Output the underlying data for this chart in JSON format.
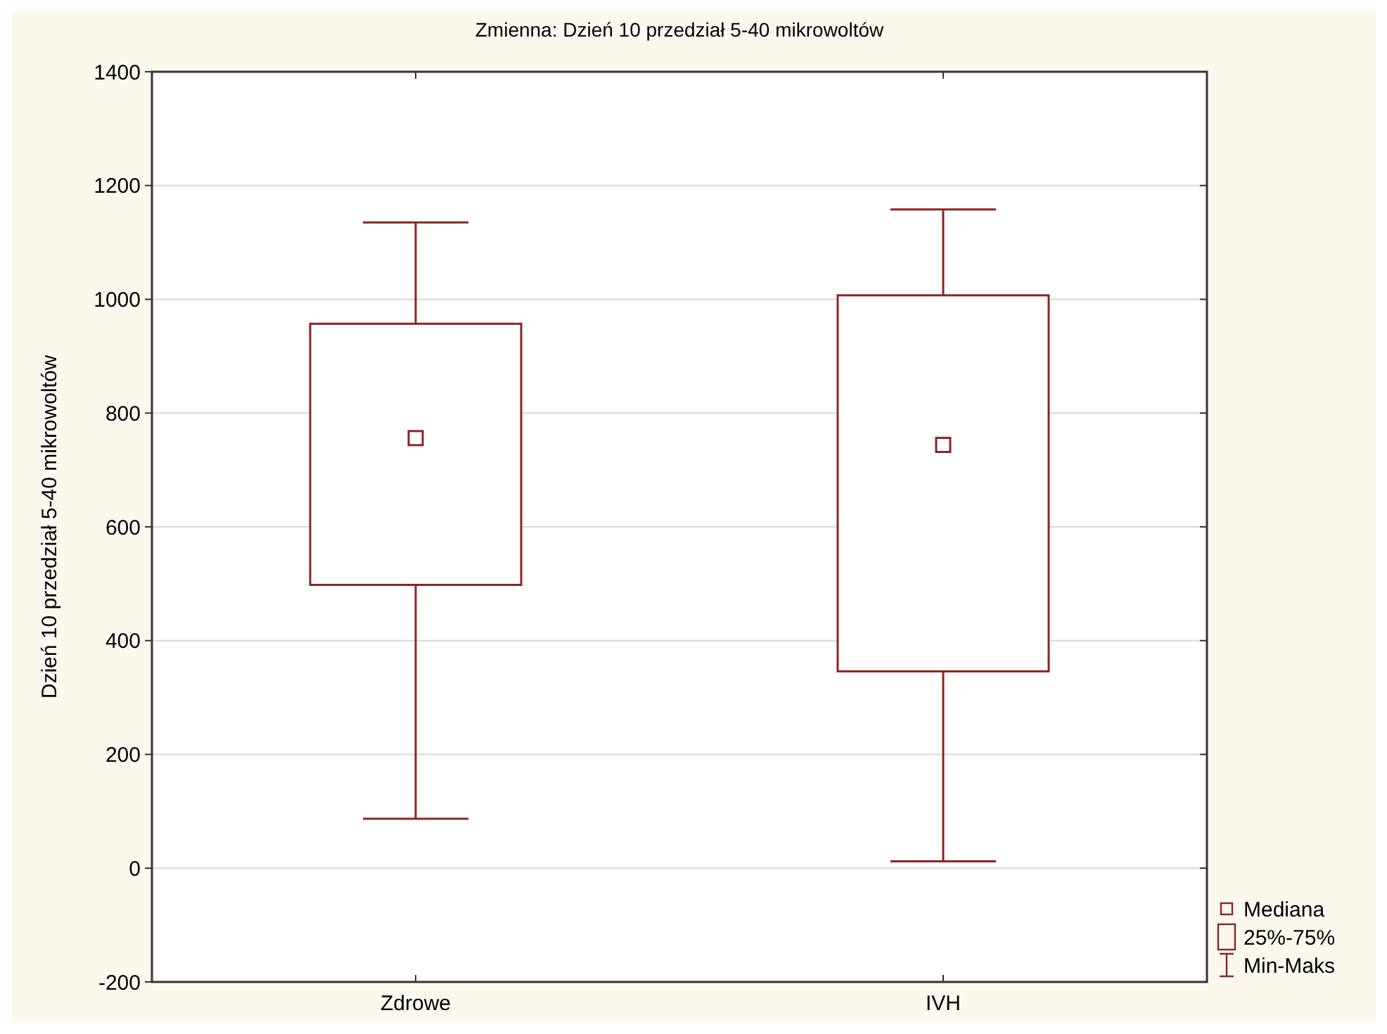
{
  "chart_data": {
    "type": "box",
    "title": "Zmienna:  Dzień 10 przedział 5-40 mikrowoltów",
    "ylabel": "Dzień 10 przedział 5-40 mikrowoltów",
    "categories": [
      "Zdrowe",
      "IVH"
    ],
    "series": [
      {
        "color": "#8b2525",
        "boxes": [
          {
            "low": 87,
            "q1": 498,
            "median": 756,
            "q3": 957,
            "high": 1135
          },
          {
            "low": 12,
            "q1": 346,
            "median": 744,
            "q3": 1007,
            "high": 1158
          }
        ]
      }
    ],
    "ylim": [
      -200,
      1400
    ],
    "yticks": [
      -200,
      0,
      200,
      400,
      600,
      800,
      1000,
      1200,
      1400
    ],
    "grid": "y",
    "annotations": [
      "Mediana",
      "25%-75%",
      "Min-Maks"
    ]
  }
}
